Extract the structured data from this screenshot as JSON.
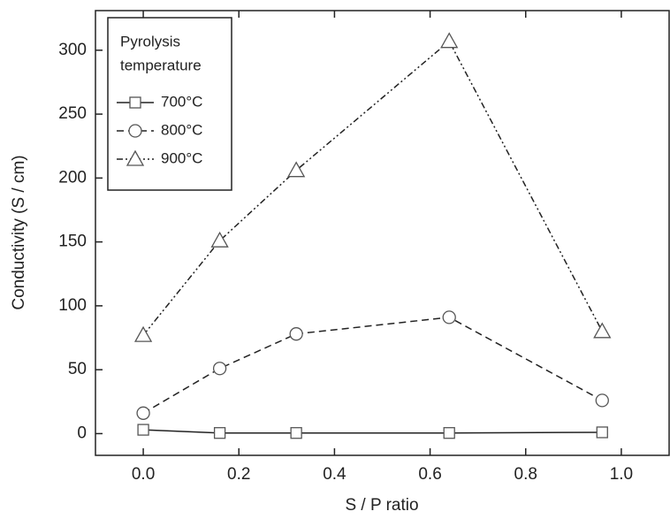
{
  "chart_data": {
    "type": "line",
    "x_label": "S / P ratio",
    "y_label": "Conductivity (S / cm)",
    "legend_title": [
      "Pyrolysis",
      "temperature"
    ],
    "legend_position": "upper left",
    "x": [
      0,
      0.16,
      0.32,
      0.64,
      0.96
    ],
    "series": [
      {
        "name": "700°C",
        "color": "#222222",
        "marker": "square",
        "dash": "solid",
        "values": [
          3,
          0.5,
          0.5,
          0.5,
          1
        ]
      },
      {
        "name": "800°C",
        "color": "#222222",
        "marker": "circle",
        "dash": "dashed",
        "values": [
          16,
          51,
          78,
          91,
          26
        ]
      },
      {
        "name": "900°C",
        "color": "#222222",
        "marker": "triangle",
        "dash": "dash-dot-dot",
        "values": [
          77,
          151,
          206,
          307,
          80
        ]
      }
    ],
    "xlim": [
      -0.1,
      1.1
    ],
    "xticks": [
      {
        "value": 0,
        "label": "0.0"
      },
      {
        "value": 0.2,
        "label": "0.2"
      },
      {
        "value": 0.4,
        "label": "0.4"
      },
      {
        "value": 0.6,
        "label": "0.6"
      },
      {
        "value": 0.8,
        "label": "0.8"
      },
      {
        "value": 1,
        "label": "1.0"
      }
    ],
    "ylim": [
      -17,
      331
    ],
    "yticks": [
      0,
      50,
      100,
      150,
      200,
      250,
      300
    ]
  }
}
